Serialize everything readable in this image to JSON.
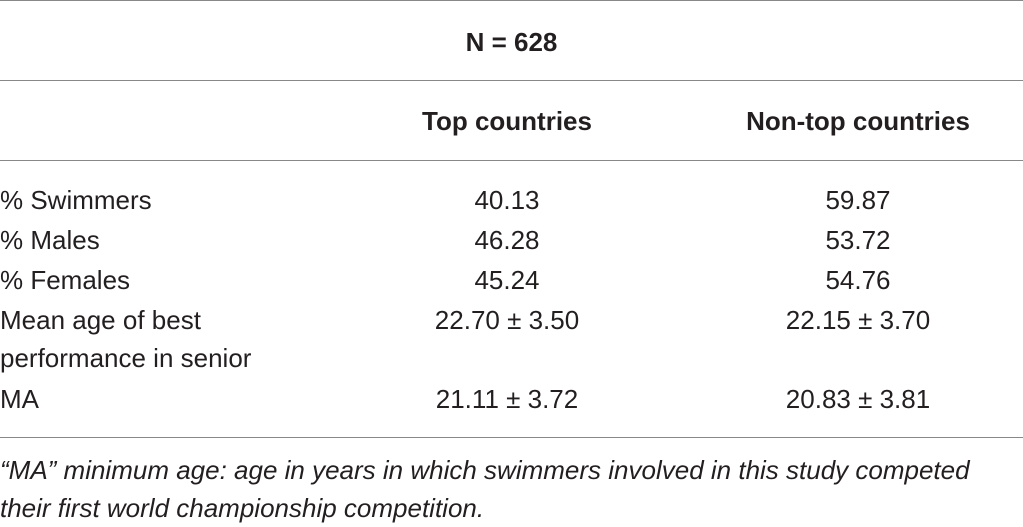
{
  "header": {
    "title": "N = 628",
    "columns": [
      "Top countries",
      "Non-top countries"
    ]
  },
  "table": {
    "rows": [
      [
        "% Swimmers",
        "40.13",
        "59.87"
      ],
      [
        "% Males",
        "46.28",
        "53.72"
      ],
      [
        "% Females",
        "45.24",
        "54.76"
      ],
      [
        "Mean age of best performance in senior",
        "22.70 ± 3.50",
        "22.15 ± 3.70"
      ],
      [
        "MA",
        "21.11 ± 3.72",
        "20.83 ± 3.81"
      ]
    ]
  },
  "footnote": "“MA” minimum age: age in years in which swimmers involved in this study competed their first world championship competition."
}
